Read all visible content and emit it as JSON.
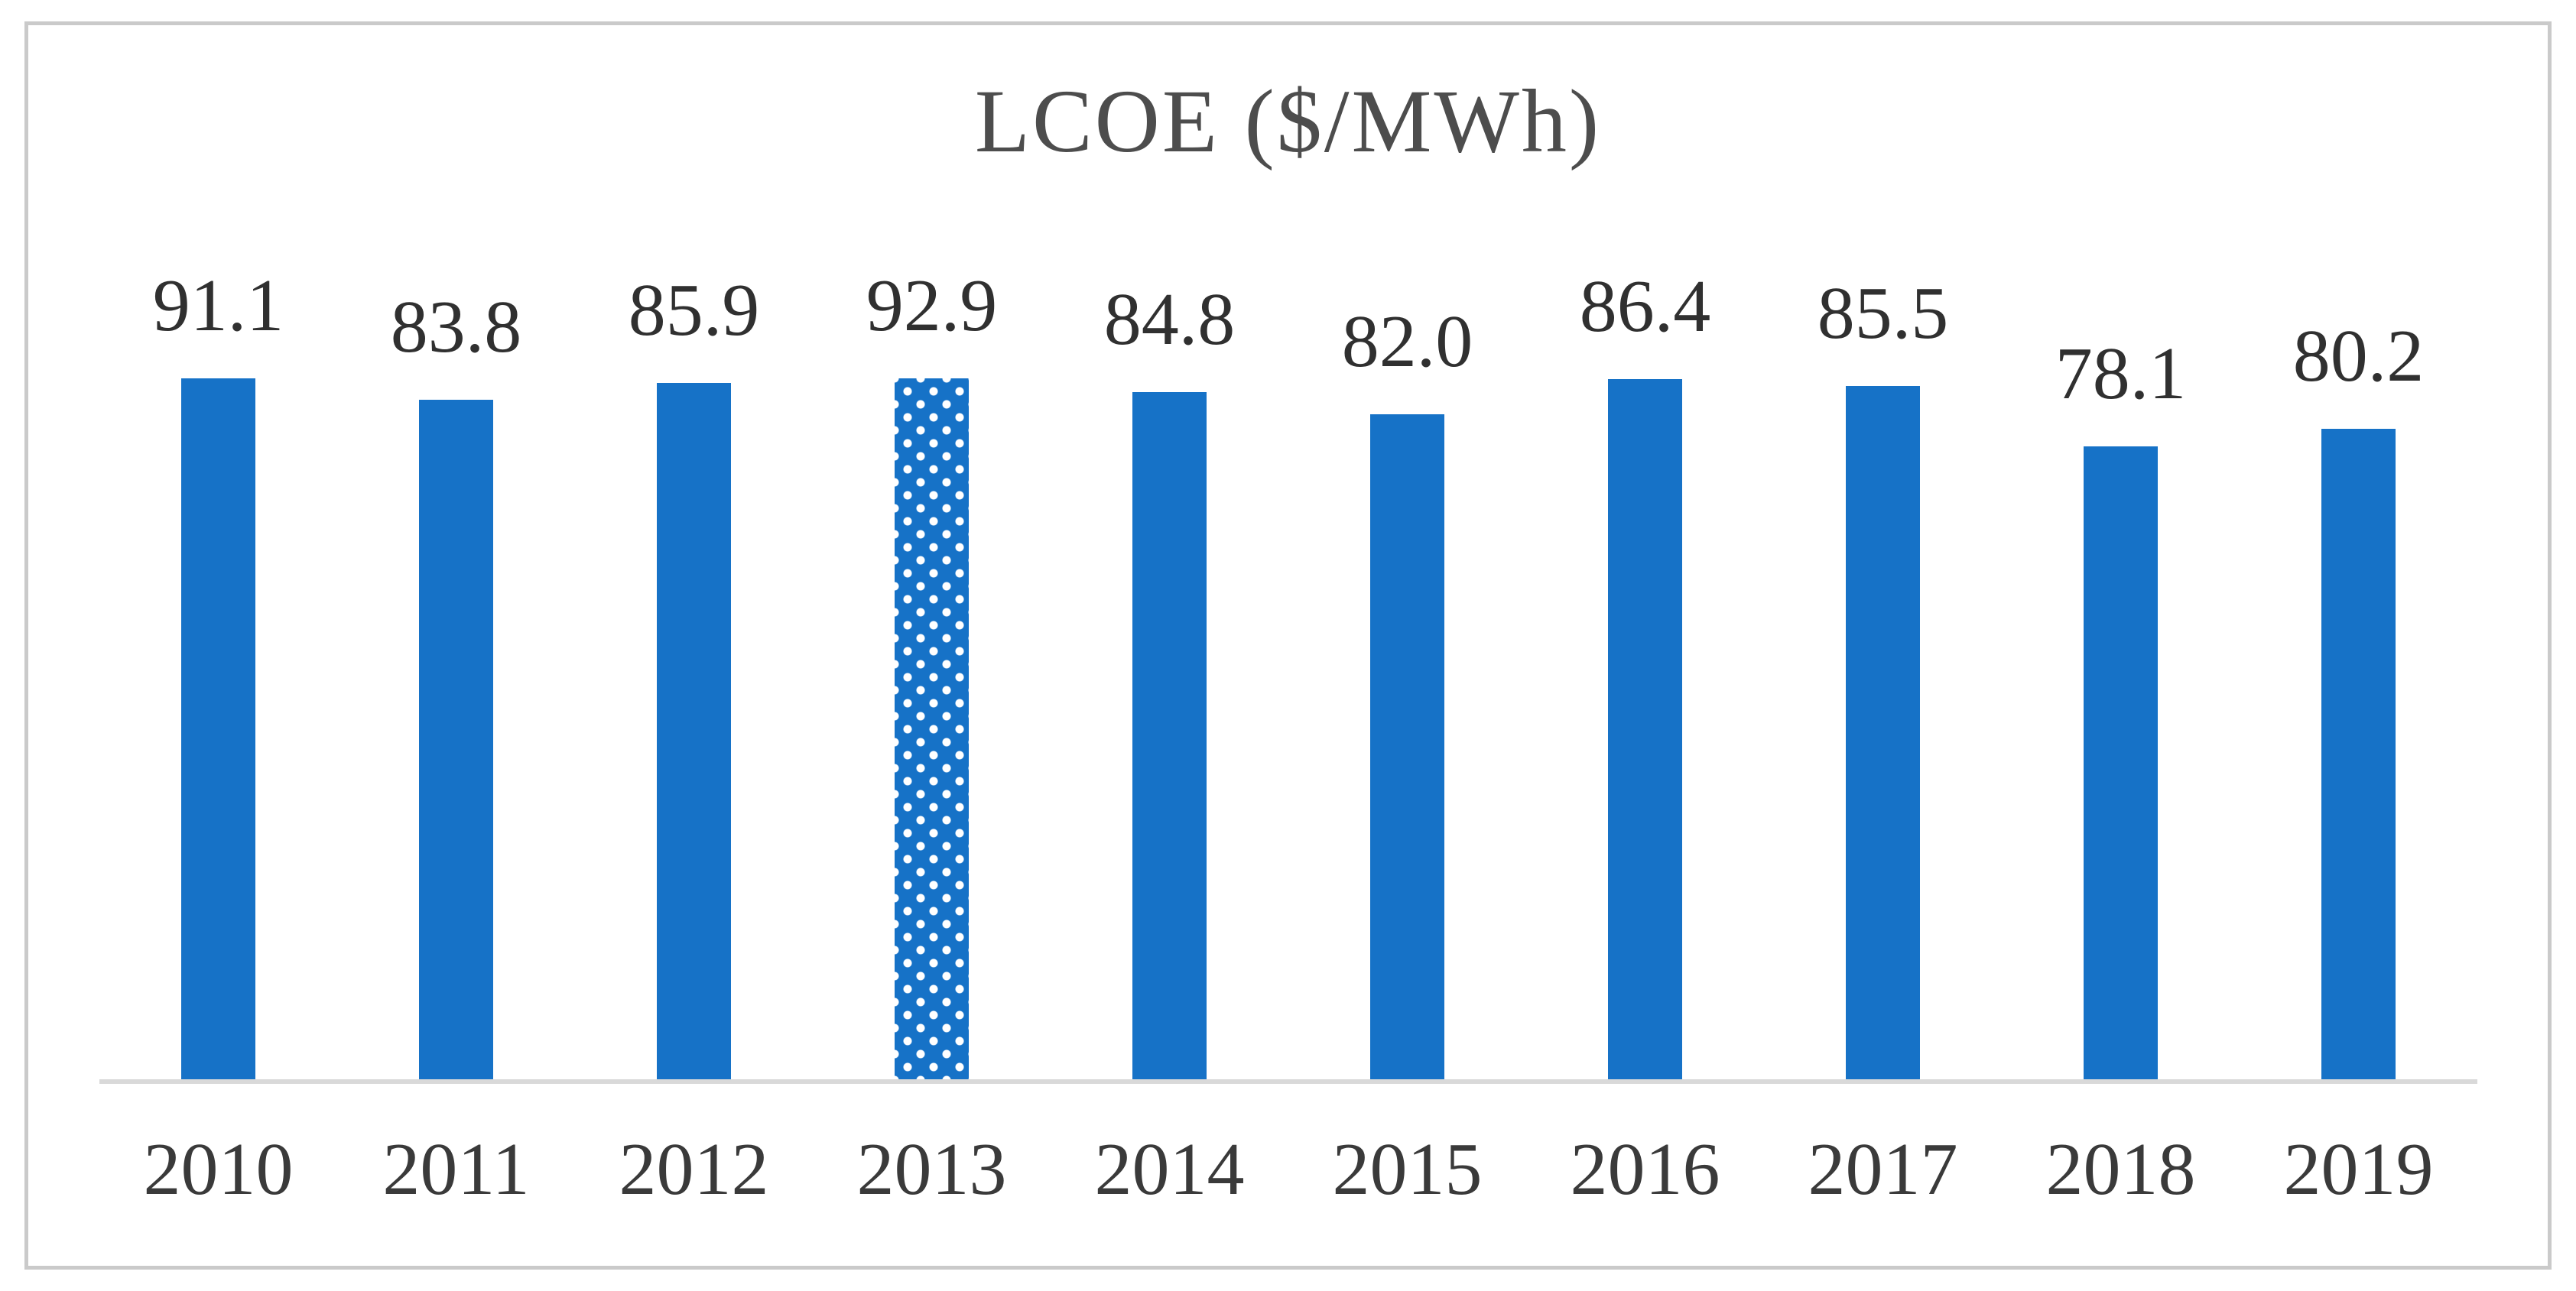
{
  "chart_data": {
    "type": "bar",
    "title": "LCOE ($/MWh)",
    "categories": [
      "2010",
      "2011",
      "2012",
      "2013",
      "2014",
      "2015",
      "2016",
      "2017",
      "2018",
      "2019"
    ],
    "values": [
      91.1,
      83.8,
      85.9,
      92.9,
      84.8,
      82.0,
      86.4,
      85.5,
      78.1,
      80.2
    ],
    "value_labels": [
      "91.1",
      "83.8",
      "85.9",
      "92.9",
      "84.8",
      "82.0",
      "86.4",
      "85.5",
      "78.1",
      "80.2"
    ],
    "xlabel": "",
    "ylabel": "",
    "ylim": [
      0,
      100
    ],
    "grid": false,
    "legend": false,
    "data_labels_shown": true,
    "y_axis_shown": false,
    "patterned_category": "2013",
    "pattern_style": "white polka-dot checker fill"
  },
  "colors": {
    "bar_blue": "#1672C7",
    "axis_line": "#D9D9D9",
    "frame_border": "#CACACA",
    "title_text": "#4D4D4D",
    "label_text": "#303030",
    "background": "#FFFFFF"
  }
}
